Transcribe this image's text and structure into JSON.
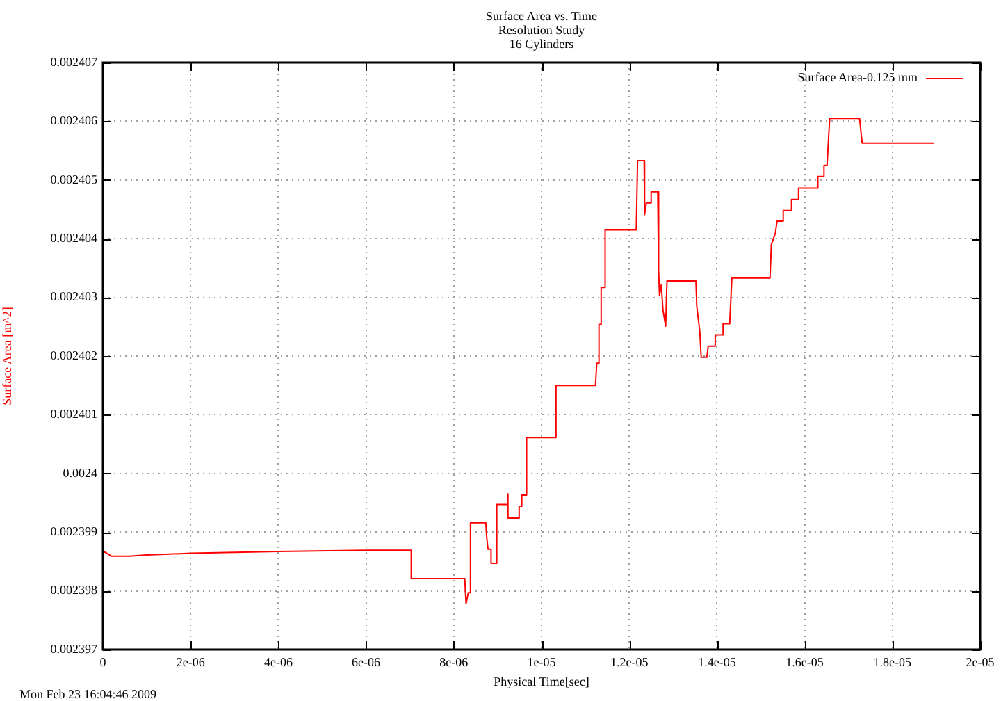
{
  "chart_data": {
    "type": "line",
    "title": "Surface Area vs. Time",
    "subtitle": "Resolution Study\n16 Cylinders",
    "xlabel": "Physical Time[sec]",
    "ylabel": "Surface Area [m^2]",
    "annotations": [
      "Mon Feb 23 16:04:46 2009"
    ],
    "x": [
      0,
      2e-07,
      6e-07,
      1e-06,
      2e-06,
      4e-06,
      6e-06,
      7.03e-06,
      7.03e-06,
      8.25e-06,
      8.28e-06,
      8.33e-06,
      8.38e-06,
      8.38e-06,
      8.73e-06,
      8.75e-06,
      8.78e-06,
      8.85e-06,
      8.85e-06,
      8.98e-06,
      8.98e-06,
      9.23e-06,
      9.23e-06,
      9.24e-06,
      9.49e-06,
      9.49e-06,
      9.55e-06,
      9.55e-06,
      9.66e-06,
      9.66e-06,
      1.033e-05,
      1.033e-05,
      1.123e-05,
      1.126e-05,
      1.131e-05,
      1.131e-05,
      1.136e-05,
      1.136e-05,
      1.145e-05,
      1.145e-05,
      1.216e-05,
      1.219e-05,
      1.234e-05,
      1.235e-05,
      1.239e-05,
      1.249e-05,
      1.25e-05,
      1.265e-05,
      1.267e-05,
      1.269e-05,
      1.273e-05,
      1.277e-05,
      1.283e-05,
      1.286e-05,
      1.352e-05,
      1.354e-05,
      1.361e-05,
      1.364e-05,
      1.377e-05,
      1.38e-05,
      1.396e-05,
      1.396e-05,
      1.414e-05,
      1.414e-05,
      1.429e-05,
      1.434e-05,
      1.521e-05,
      1.524e-05,
      1.533e-05,
      1.537e-05,
      1.551e-05,
      1.551e-05,
      1.57e-05,
      1.57e-05,
      1.586e-05,
      1.586e-05,
      1.63e-05,
      1.63e-05,
      1.644e-05,
      1.644e-05,
      1.651e-05,
      1.657e-05,
      1.725e-05,
      1.731e-05,
      1.894e-05
    ],
    "series": [
      {
        "name": "Surface Area-0.125 mm",
        "color": "#ff0000",
        "values": [
          0.00239868,
          0.00239859,
          0.00239859,
          0.00239861,
          0.00239864,
          0.00239867,
          0.00239869,
          0.00239869,
          0.00239821,
          0.00239821,
          0.00239778,
          0.00239797,
          0.00239797,
          0.00239916,
          0.00239916,
          0.00239892,
          0.00239871,
          0.00239871,
          0.00239847,
          0.00239847,
          0.00239947,
          0.00239947,
          0.00239965,
          0.00239924,
          0.00239924,
          0.00239944,
          0.00239944,
          0.00239963,
          0.00239963,
          0.00240061,
          0.00240061,
          0.0024015,
          0.0024015,
          0.00240188,
          0.00240188,
          0.00240254,
          0.00240254,
          0.00240317,
          0.00240317,
          0.00240415,
          0.00240415,
          0.00240533,
          0.00240533,
          0.00240441,
          0.00240461,
          0.00240461,
          0.0024048,
          0.0024048,
          0.00240346,
          0.00240303,
          0.00240321,
          0.00240278,
          0.00240251,
          0.00240328,
          0.00240328,
          0.00240285,
          0.00240241,
          0.00240198,
          0.00240198,
          0.00240217,
          0.00240217,
          0.00240236,
          0.00240236,
          0.00240255,
          0.00240255,
          0.00240333,
          0.00240333,
          0.0024039,
          0.00240409,
          0.0024043,
          0.0024043,
          0.00240448,
          0.00240448,
          0.00240467,
          0.00240467,
          0.00240486,
          0.00240486,
          0.00240506,
          0.00240506,
          0.00240525,
          0.00240525,
          0.00240605,
          0.00240605,
          0.00240563,
          0.00240563
        ]
      }
    ],
    "xlim": [
      0,
      2e-05
    ],
    "xticks": [
      0,
      {
        "value": 2e-06,
        "label": "2e-06"
      },
      {
        "value": 4e-06,
        "label": "4e-06"
      },
      {
        "value": 6e-06,
        "label": "6e-06"
      },
      {
        "value": 8e-06,
        "label": "8e-06"
      },
      {
        "value": 1e-05,
        "label": "1e-05"
      },
      {
        "value": 1.2e-05,
        "label": "1.2e-05"
      },
      {
        "value": 1.4e-05,
        "label": "1.4e-05"
      },
      {
        "value": 1.6e-05,
        "label": "1.6e-05"
      },
      {
        "value": 1.8e-05,
        "label": "1.8e-05"
      },
      {
        "value": 2e-05,
        "label": "2e-05"
      }
    ],
    "ylim": [
      0.002397,
      0.002407
    ],
    "yticks": [
      0.002397,
      0.002398,
      0.002399,
      0.0024,
      0.002401,
      0.002402,
      0.002403,
      0.002404,
      0.002405,
      0.002406,
      0.002407
    ],
    "grid": true,
    "legend": "top right"
  }
}
